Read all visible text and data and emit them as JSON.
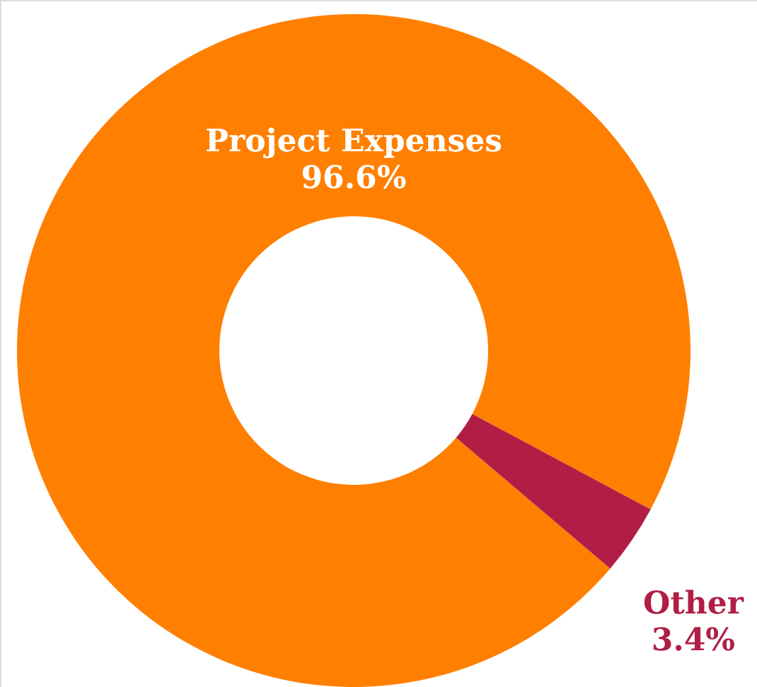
{
  "chart_data": {
    "type": "donut",
    "categories": [
      "Project Expenses",
      "Other"
    ],
    "values": [
      96.6,
      3.4
    ],
    "colors": [
      "#ff7f00",
      "#b01e45"
    ],
    "value_labels": [
      "96.6%",
      "3.4%"
    ]
  }
}
